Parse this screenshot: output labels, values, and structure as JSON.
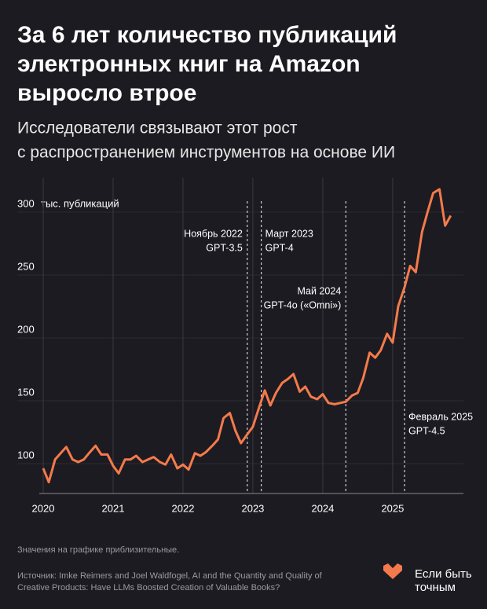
{
  "chart_data": {
    "type": "line",
    "title": [
      "За 6 лет количество публикаций",
      "электронных книг на Amazon",
      "выросло втрое"
    ],
    "subtitle": [
      "Исследователи связывают этот рост",
      "с распространением инструментов на основе ИИ"
    ],
    "y_unit": "тыс. публикаций",
    "x": [
      2020.0,
      2020.08,
      2020.17,
      2020.25,
      2020.33,
      2020.42,
      2020.5,
      2020.58,
      2020.67,
      2020.75,
      2020.83,
      2020.92,
      2021.0,
      2021.08,
      2021.17,
      2021.25,
      2021.33,
      2021.42,
      2021.5,
      2021.58,
      2021.67,
      2021.75,
      2021.83,
      2021.92,
      2022.0,
      2022.08,
      2022.17,
      2022.25,
      2022.33,
      2022.42,
      2022.5,
      2022.58,
      2022.67,
      2022.75,
      2022.83,
      2022.92,
      2023.0,
      2023.08,
      2023.17,
      2023.25,
      2023.33,
      2023.42,
      2023.5,
      2023.58,
      2023.67,
      2023.75,
      2023.83,
      2023.92,
      2024.0,
      2024.08,
      2024.17,
      2024.25,
      2024.33,
      2024.42,
      2024.5,
      2024.58,
      2024.67,
      2024.75,
      2024.83,
      2024.92,
      2025.0,
      2025.08,
      2025.17,
      2025.25,
      2025.33,
      2025.42,
      2025.5,
      2025.58,
      2025.67,
      2025.75,
      2025.83
    ],
    "series": [
      {
        "color": "#f47a4c",
        "values": [
          90,
          79,
          97,
          102,
          107,
          97,
          95,
          97,
          103,
          108,
          101,
          101,
          92,
          86,
          97,
          97,
          100,
          95,
          97,
          99,
          95,
          93,
          101,
          90,
          93,
          89,
          102,
          100,
          103,
          108,
          113,
          130,
          134,
          120,
          110,
          117,
          123,
          137,
          152,
          140,
          150,
          158,
          161,
          165,
          151,
          155,
          147,
          145,
          149,
          142,
          141,
          142,
          143,
          148,
          150,
          162,
          182,
          178,
          184,
          197,
          190,
          219,
          234,
          251,
          246,
          278,
          294,
          309,
          312,
          283,
          291
        ]
      }
    ],
    "xlim": [
      2020,
      2025.9
    ],
    "ylim": [
      70,
      315
    ],
    "xticks": [
      2020,
      2021,
      2022,
      2023,
      2024,
      2025
    ],
    "yticks": [
      100,
      150,
      200,
      250,
      300
    ],
    "annotations": [
      {
        "x": 2022.92,
        "lines": [
          "Ноябрь 2022",
          "GPT-3.5"
        ],
        "side": "left",
        "level": 0
      },
      {
        "x": 2023.12,
        "lines": [
          "Март 2023",
          "GPT-4"
        ],
        "side": "right",
        "level": 0
      },
      {
        "x": 2024.33,
        "lines": [
          "Май 2024",
          "GPT-4o («Omni»)"
        ],
        "side": "left",
        "level": 1
      },
      {
        "x": 2025.17,
        "lines": [
          "Февраль 2025",
          "GPT-4.5"
        ],
        "side": "right",
        "level": 2
      }
    ],
    "note": "Значения на графике приблизительные.",
    "source": [
      "Источник: Imke Reimers and Joel Waldfogel, AI and the Quantity and Quality of",
      "Creative Products: Have LLMs Boosted Creation of Valuable Books?"
    ],
    "brand": [
      "Если быть",
      "точным"
    ]
  }
}
